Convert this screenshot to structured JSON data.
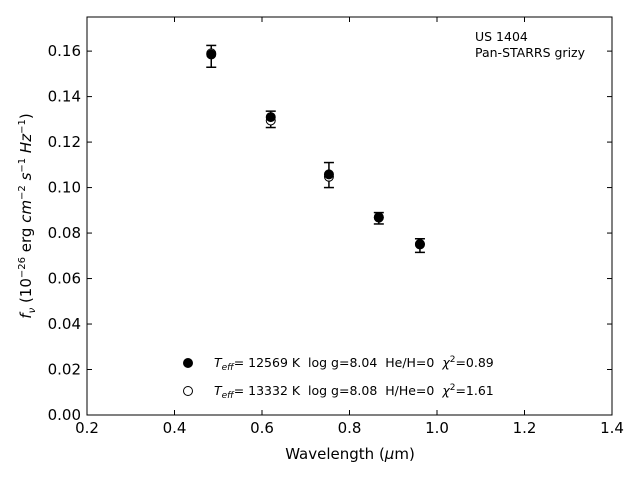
{
  "chart_data": {
    "type": "scatter",
    "xlabel": "Wavelength (μm)",
    "ylabel": "f_ν (10^-26 erg cm^-2 s^-1 Hz^-1)",
    "xlim": [
      0.2,
      1.4
    ],
    "ylim": [
      0.0,
      0.175
    ],
    "x_ticks": [
      0.2,
      0.4,
      0.6,
      0.8,
      1.0,
      1.2,
      1.4
    ],
    "y_ticks": [
      0.0,
      0.02,
      0.04,
      0.06,
      0.08,
      0.1,
      0.12,
      0.14,
      0.16
    ],
    "x_tick_labels": [
      "0.2",
      "0.4",
      "0.6",
      "0.8",
      "1.0",
      "1.2",
      "1.4"
    ],
    "y_tick_labels": [
      "0.00",
      "0.02",
      "0.04",
      "0.06",
      "0.08",
      "0.10",
      "0.12",
      "0.14",
      "0.16"
    ],
    "grid": false,
    "annotation": [
      "US 1404",
      "Pan-STARRS grizy"
    ],
    "observed": {
      "x": [
        0.484,
        0.62,
        0.753,
        0.867,
        0.961
      ],
      "y": [
        0.1577,
        0.13,
        0.1055,
        0.0865,
        0.0745
      ],
      "yerr": [
        0.0048,
        0.0036,
        0.0055,
        0.0025,
        0.003
      ]
    },
    "series": [
      {
        "name": "T_eff= 12569 K  log g=8.04  He/H=0  χ²=0.89",
        "marker": "filled-circle",
        "x": [
          0.484,
          0.62,
          0.753,
          0.867,
          0.961
        ],
        "y": [
          0.1585,
          0.131,
          0.1058,
          0.087,
          0.075
        ]
      },
      {
        "name": "T_eff= 13332 K  log g=8.08  H/He=0  χ²=1.61",
        "marker": "open-circle",
        "x": [
          0.484,
          0.62,
          0.753,
          0.867,
          0.961
        ],
        "y": [
          0.159,
          0.1295,
          0.1048,
          0.0868,
          0.0752
        ]
      }
    ],
    "legend": [
      {
        "teff_label": "T",
        "teff_sub": "eff",
        "rest": "= 12569 K  log g=8.04  He/H=0  ",
        "chi": "χ",
        "chi_sup": "2",
        "chi_val": "=0.89"
      },
      {
        "teff_label": "T",
        "teff_sub": "eff",
        "rest": "= 13332 K  log g=8.08  H/He=0  ",
        "chi": "χ",
        "chi_sup": "2",
        "chi_val": "=1.61"
      }
    ],
    "legend_position": "lower-center"
  }
}
